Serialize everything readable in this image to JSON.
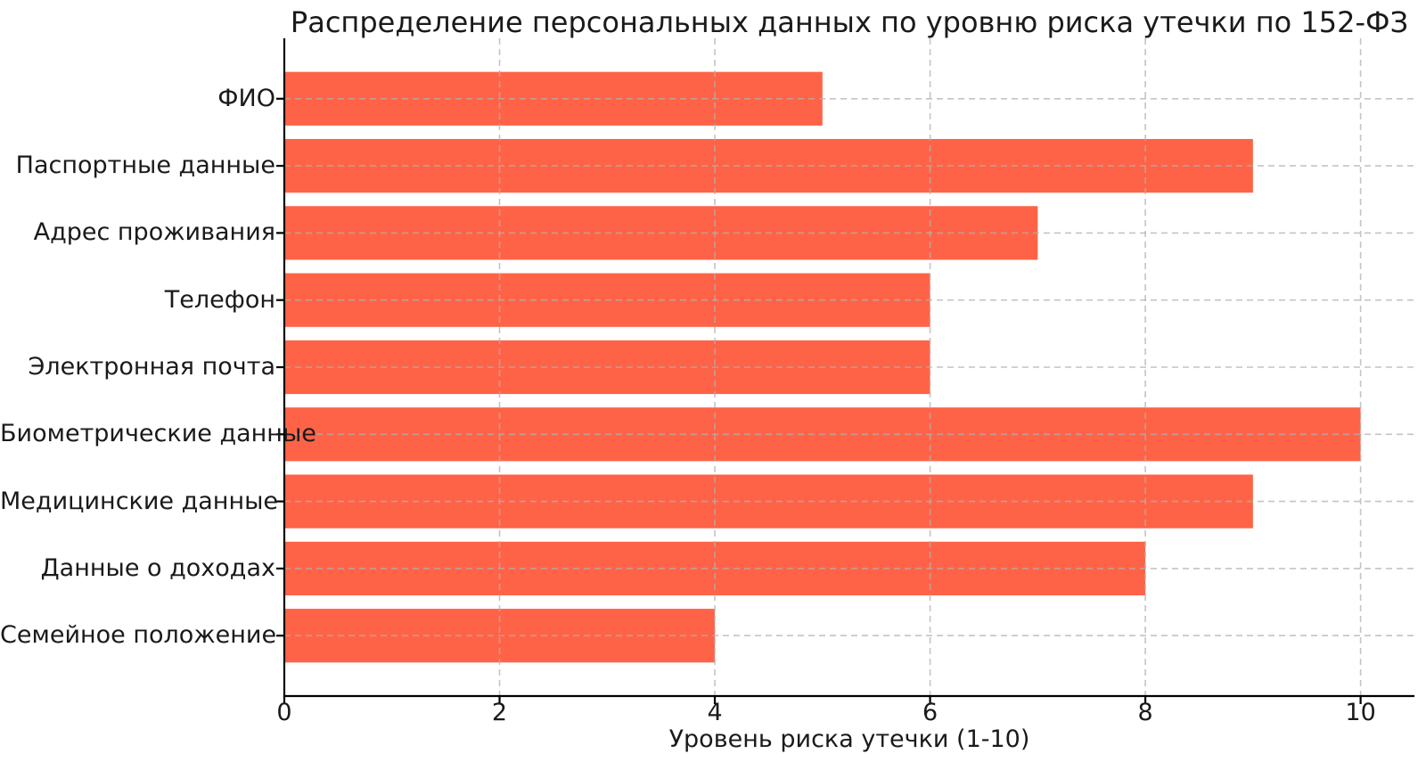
{
  "chart_data": {
    "type": "bar",
    "orientation": "horizontal",
    "title": "Распределение персональных данных по уровню риска утечки по 152-ФЗ",
    "xlabel": "Уровень риска утечки (1-10)",
    "ylabel": "",
    "categories": [
      "ФИО",
      "Паспортные данные",
      "Адрес проживания",
      "Телефон",
      "Электронная почта",
      "Биометрические данные",
      "Медицинские данные",
      "Данные о доходах",
      "Семейное положение"
    ],
    "values": [
      5,
      9,
      7,
      6,
      6,
      10,
      9,
      8,
      4
    ],
    "xticks": [
      0,
      2,
      4,
      6,
      8,
      10
    ],
    "xlim": [
      0,
      10.5
    ],
    "grid": {
      "visible": true,
      "style": "dashed",
      "color": "#b0b0b0"
    },
    "legend": null,
    "colors": {
      "bar": "#FF6347",
      "axis": "#000000",
      "text": "#1a1a1a",
      "background": "#ffffff"
    }
  }
}
